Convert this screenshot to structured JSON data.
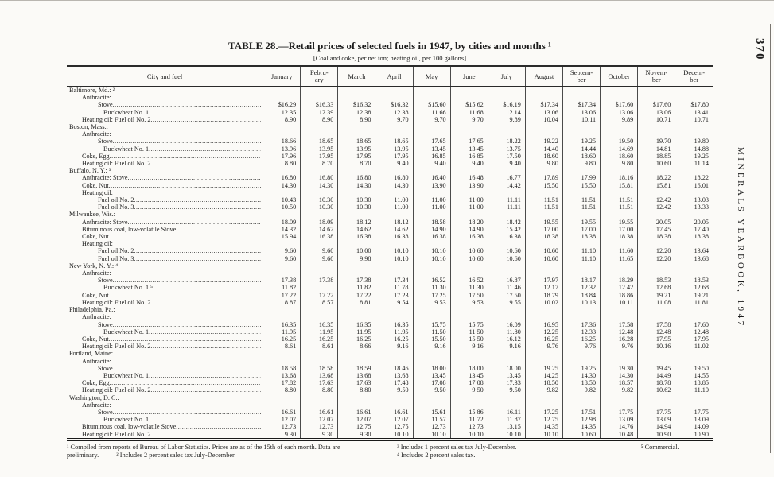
{
  "page": {
    "page_number": "370",
    "running_title": "MINERALS YEARBOOK, 1947",
    "title": "TABLE 28.—Retail prices of selected fuels in 1947, by cities and months ¹",
    "subtitle": "[Coal and coke, per net ton; heating oil, per 100 gallons]"
  },
  "table": {
    "label_header": "City and fuel",
    "month_headers": [
      [
        "January"
      ],
      [
        "Febru-",
        "ary"
      ],
      [
        "March"
      ],
      [
        "April"
      ],
      [
        "May"
      ],
      [
        "June"
      ],
      [
        "July"
      ],
      [
        "August"
      ],
      [
        "Septem-",
        "ber"
      ],
      [
        "October"
      ],
      [
        "Novem-",
        "ber"
      ],
      [
        "Decem-",
        "ber"
      ]
    ],
    "rows": [
      {
        "label": "Baltimore, Md.: ²",
        "indent": 0
      },
      {
        "label": "Anthracite:",
        "indent": 1
      },
      {
        "label": "Stove",
        "indent": 2,
        "values": [
          "$16.29",
          "$16.33",
          "$16.32",
          "$16.32",
          "$15.60",
          "$15.62",
          "$16.19",
          "$17.34",
          "$17.34",
          "$17.60",
          "$17.60",
          "$17.80"
        ]
      },
      {
        "label": "Buckwheat No. 1",
        "indent": 3,
        "values": [
          "12.35",
          "12.39",
          "12.38",
          "12.38",
          "11.66",
          "11.68",
          "12.14",
          "13.06",
          "13.06",
          "13.06",
          "13.06",
          "13.41"
        ]
      },
      {
        "label": "Heating oil:  Fuel oil No. 2",
        "indent": 1,
        "values": [
          "8.90",
          "8.90",
          "8.90",
          "9.70",
          "9.70",
          "9.70",
          "9.89",
          "10.04",
          "10.11",
          "9.89",
          "10.71",
          "10.71"
        ]
      },
      {
        "label": "Boston, Mass.:",
        "indent": 0
      },
      {
        "label": "Anthracite:",
        "indent": 1
      },
      {
        "label": "Stove",
        "indent": 2,
        "values": [
          "18.66",
          "18.65",
          "18.65",
          "18.65",
          "17.65",
          "17.65",
          "18.22",
          "19.22",
          "19.25",
          "19.50",
          "19.70",
          "19.80"
        ]
      },
      {
        "label": "Buckwheat No. 1",
        "indent": 3,
        "values": [
          "13.96",
          "13.95",
          "13.95",
          "13.95",
          "13.45",
          "13.45",
          "13.75",
          "14.40",
          "14.44",
          "14.69",
          "14.81",
          "14.88"
        ]
      },
      {
        "label": "Coke, Egg",
        "indent": 1,
        "values": [
          "17.96",
          "17.95",
          "17.95",
          "17.95",
          "16.85",
          "16.85",
          "17.50",
          "18.60",
          "18.60",
          "18.60",
          "18.85",
          "19.25"
        ]
      },
      {
        "label": "Heating oil:  Fuel oil No. 2",
        "indent": 1,
        "values": [
          "8.80",
          "8.70",
          "8.70",
          "9.40",
          "9.40",
          "9.40",
          "9.40",
          "9.80",
          "9.80",
          "9.80",
          "10.60",
          "11.14"
        ]
      },
      {
        "label": "Buffalo, N. Y.: ³",
        "indent": 0
      },
      {
        "label": "Anthracite:  Stove",
        "indent": 1,
        "values": [
          "16.80",
          "16.80",
          "16.80",
          "16.80",
          "16.40",
          "16.48",
          "16.77",
          "17.89",
          "17.99",
          "18.16",
          "18.22",
          "18.22"
        ]
      },
      {
        "label": "Coke, Nut",
        "indent": 1,
        "values": [
          "14.30",
          "14.30",
          "14.30",
          "14.30",
          "13.90",
          "13.90",
          "14.42",
          "15.50",
          "15.50",
          "15.81",
          "15.81",
          "16.01"
        ]
      },
      {
        "label": "Heating oil:",
        "indent": 1
      },
      {
        "label": "Fuel oil No. 2",
        "indent": 2,
        "values": [
          "10.43",
          "10.30",
          "10.30",
          "11.00",
          "11.00",
          "11.00",
          "11.11",
          "11.51",
          "11.51",
          "11.51",
          "12.42",
          "13.03"
        ]
      },
      {
        "label": "Fuel oil No. 3",
        "indent": 2,
        "values": [
          "10.50",
          "10.30",
          "10.30",
          "11.00",
          "11.00",
          "11.00",
          "11.11",
          "11.51",
          "11.51",
          "11.51",
          "12.42",
          "13.33"
        ]
      },
      {
        "label": "Milwaukee, Wis.:",
        "indent": 0
      },
      {
        "label": "Anthracite:  Stove",
        "indent": 1,
        "values": [
          "18.09",
          "18.09",
          "18.12",
          "18.12",
          "18.58",
          "18.20",
          "18.42",
          "19.55",
          "19.55",
          "19.55",
          "20.05",
          "20.05"
        ]
      },
      {
        "label": "Bituminous coal, low-volatile Stove",
        "indent": 1,
        "values": [
          "14.32",
          "14.62",
          "14.62",
          "14.62",
          "14.90",
          "14.90",
          "15.42",
          "17.00",
          "17.00",
          "17.00",
          "17.45",
          "17.40"
        ]
      },
      {
        "label": "Coke, Nut",
        "indent": 1,
        "values": [
          "15.94",
          "16.38",
          "16.38",
          "16.38",
          "16.38",
          "16.38",
          "16.38",
          "18.38",
          "18.38",
          "18.38",
          "18.38",
          "18.38"
        ]
      },
      {
        "label": "Heating oil:",
        "indent": 1
      },
      {
        "label": "Fuel oil No. 2",
        "indent": 2,
        "values": [
          "9.60",
          "9.60",
          "10.00",
          "10.10",
          "10.10",
          "10.60",
          "10.60",
          "10.60",
          "11.10",
          "11.60",
          "12.20",
          "13.64"
        ]
      },
      {
        "label": "Fuel oil No. 3",
        "indent": 2,
        "values": [
          "9.60",
          "9.60",
          "9.98",
          "10.10",
          "10.10",
          "10.60",
          "10.60",
          "10.60",
          "11.10",
          "11.65",
          "12.20",
          "13.68"
        ]
      },
      {
        "label": "New York, N. Y.: ⁴",
        "indent": 0
      },
      {
        "label": "Anthracite:",
        "indent": 1
      },
      {
        "label": "Stove",
        "indent": 2,
        "values": [
          "17.38",
          "17.38",
          "17.38",
          "17.34",
          "16.52",
          "16.52",
          "16.87",
          "17.97",
          "18.17",
          "18.29",
          "18.53",
          "18.53"
        ]
      },
      {
        "label": "Buckwheat No. 1 ⁵",
        "indent": 3,
        "values": [
          "11.82",
          "..........",
          "11.82",
          "11.78",
          "11.30",
          "11.30",
          "11.46",
          "12.17",
          "12.32",
          "12.42",
          "12.68",
          "12.68"
        ]
      },
      {
        "label": "Coke, Nut",
        "indent": 1,
        "values": [
          "17.22",
          "17.22",
          "17.22",
          "17.23",
          "17.25",
          "17.50",
          "17.50",
          "18.79",
          "18.84",
          "18.86",
          "19.21",
          "19.21"
        ]
      },
      {
        "label": "Heating oil:  Fuel oil No. 2",
        "indent": 1,
        "values": [
          "8.87",
          "8.57",
          "8.81",
          "9.54",
          "9.53",
          "9.53",
          "9.55",
          "10.02",
          "10.13",
          "10.11",
          "11.08",
          "11.81"
        ]
      },
      {
        "label": "Philadelphia, Pa.:",
        "indent": 0
      },
      {
        "label": "Anthracite:",
        "indent": 1
      },
      {
        "label": "Stove",
        "indent": 2,
        "values": [
          "16.35",
          "16.35",
          "16.35",
          "16.35",
          "15.75",
          "15.75",
          "16.09",
          "16.95",
          "17.36",
          "17.58",
          "17.58",
          "17.60"
        ]
      },
      {
        "label": "Buckwheat No. 1",
        "indent": 3,
        "values": [
          "11.95",
          "11.95",
          "11.95",
          "11.95",
          "11.50",
          "11.50",
          "11.80",
          "12.25",
          "12.33",
          "12.48",
          "12.48",
          "12.48"
        ]
      },
      {
        "label": "Coke, Nut",
        "indent": 1,
        "values": [
          "16.25",
          "16.25",
          "16.25",
          "16.25",
          "15.50",
          "15.50",
          "16.12",
          "16.25",
          "16.25",
          "16.28",
          "17.95",
          "17.95"
        ]
      },
      {
        "label": "Heating oil:  Fuel oil No. 2",
        "indent": 1,
        "values": [
          "8.61",
          "8.61",
          "8.66",
          "9.16",
          "9.16",
          "9.16",
          "9.16",
          "9.76",
          "9.76",
          "9.76",
          "10.16",
          "11.02"
        ]
      },
      {
        "label": "Portland, Maine:",
        "indent": 0
      },
      {
        "label": "Anthracite:",
        "indent": 1
      },
      {
        "label": "Stove",
        "indent": 2,
        "values": [
          "18.58",
          "18.58",
          "18.59",
          "18.46",
          "18.00",
          "18.00",
          "18.00",
          "19.25",
          "19.25",
          "19.30",
          "19.45",
          "19.50"
        ]
      },
      {
        "label": "Buckwheat No. 1",
        "indent": 3,
        "values": [
          "13.68",
          "13.68",
          "13.68",
          "13.68",
          "13.45",
          "13.45",
          "13.45",
          "14.25",
          "14.30",
          "14.30",
          "14.49",
          "14.55"
        ]
      },
      {
        "label": "Coke, Egg",
        "indent": 1,
        "values": [
          "17.82",
          "17.63",
          "17.63",
          "17.48",
          "17.08",
          "17.08",
          "17.33",
          "18.50",
          "18.50",
          "18.57",
          "18.78",
          "18.85"
        ]
      },
      {
        "label": "Heating oil:  Fuel oil No. 2",
        "indent": 1,
        "values": [
          "8.80",
          "8.80",
          "8.80",
          "9.50",
          "9.50",
          "9.50",
          "9.50",
          "9.82",
          "9.82",
          "9.82",
          "10.62",
          "11.10"
        ]
      },
      {
        "label": "Washington, D. C.:",
        "indent": 0
      },
      {
        "label": "Anthracite:",
        "indent": 1
      },
      {
        "label": "Stove",
        "indent": 2,
        "values": [
          "16.61",
          "16.61",
          "16.61",
          "16.61",
          "15.61",
          "15.86",
          "16.11",
          "17.25",
          "17.51",
          "17.75",
          "17.75",
          "17.75"
        ]
      },
      {
        "label": "Buckwheat No. 1",
        "indent": 3,
        "values": [
          "12.07",
          "12.07",
          "12.07",
          "12.07",
          "11.57",
          "11.72",
          "11.87",
          "12.75",
          "12.98",
          "13.09",
          "13.09",
          "13.09"
        ]
      },
      {
        "label": "Bituminous coal, low-volatile Stove",
        "indent": 1,
        "values": [
          "12.73",
          "12.73",
          "12.75",
          "12.75",
          "12.73",
          "12.73",
          "13.15",
          "14.35",
          "14.35",
          "14.76",
          "14.94",
          "14.09"
        ]
      },
      {
        "label": "Heating oil:  Fuel oil No. 2",
        "indent": 1,
        "values": [
          "9.30",
          "9.30",
          "9.30",
          "10.10",
          "10.10",
          "10.10",
          "10.10",
          "10.10",
          "10.60",
          "10.48",
          "10.90",
          "10.90"
        ]
      }
    ]
  },
  "footnotes": {
    "left": [
      "¹ Compiled from reports of Bureau of Labor Statistics.  Prices are as of the 15th of each month.  Data are preliminary.",
      "² Includes 2 percent sales tax July-December."
    ],
    "middle": [
      "³ Includes 1 percent sales tax July-December.",
      "⁴ Includes 2 percent sales tax."
    ],
    "right": [
      "⁵ Commercial."
    ]
  }
}
